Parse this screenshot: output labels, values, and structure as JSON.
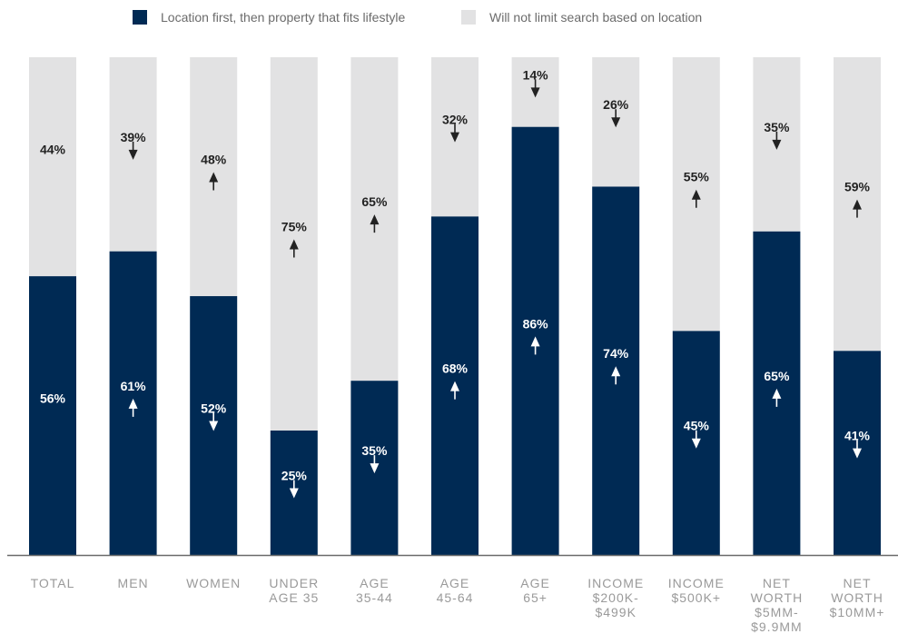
{
  "chart_data": {
    "type": "bar",
    "stacked": true,
    "categories": [
      [
        "TOTAL"
      ],
      [
        "MEN"
      ],
      [
        "WOMEN"
      ],
      [
        "UNDER",
        "AGE 35"
      ],
      [
        "AGE",
        "35-44"
      ],
      [
        "AGE",
        "45-64"
      ],
      [
        "AGE",
        "65+"
      ],
      [
        "INCOME",
        "$200K-",
        "$499K"
      ],
      [
        "INCOME",
        "$500K+"
      ],
      [
        "NET",
        "WORTH",
        "$5MM-",
        "$9.9MM"
      ],
      [
        "NET",
        "WORTH",
        "$10MM+"
      ]
    ],
    "series": [
      {
        "name": "Location first, then property that fits lifestyle",
        "color": "#002a54",
        "values": [
          56,
          61,
          52,
          25,
          35,
          68,
          86,
          74,
          45,
          65,
          41
        ],
        "labels": [
          "56%",
          "61%",
          "52%",
          "25%",
          "35%",
          "68%",
          "86%",
          "74%",
          "45%",
          "65%",
          "41%"
        ],
        "arrows": [
          "none",
          "up",
          "down",
          "down",
          "down",
          "up",
          "up",
          "up",
          "down",
          "up",
          "down"
        ]
      },
      {
        "name": "Will not limit search based on location",
        "color": "#e2e2e3",
        "values": [
          44,
          39,
          48,
          75,
          65,
          32,
          14,
          26,
          55,
          35,
          59
        ],
        "labels": [
          "44%",
          "39%",
          "48%",
          "75%",
          "65%",
          "32%",
          "14%",
          "26%",
          "55%",
          "35%",
          "59%"
        ],
        "arrows": [
          "none",
          "down",
          "up",
          "up",
          "up",
          "down",
          "down",
          "down",
          "up",
          "down",
          "up"
        ]
      }
    ],
    "ylim": [
      0,
      100
    ],
    "legend_position": "top"
  }
}
